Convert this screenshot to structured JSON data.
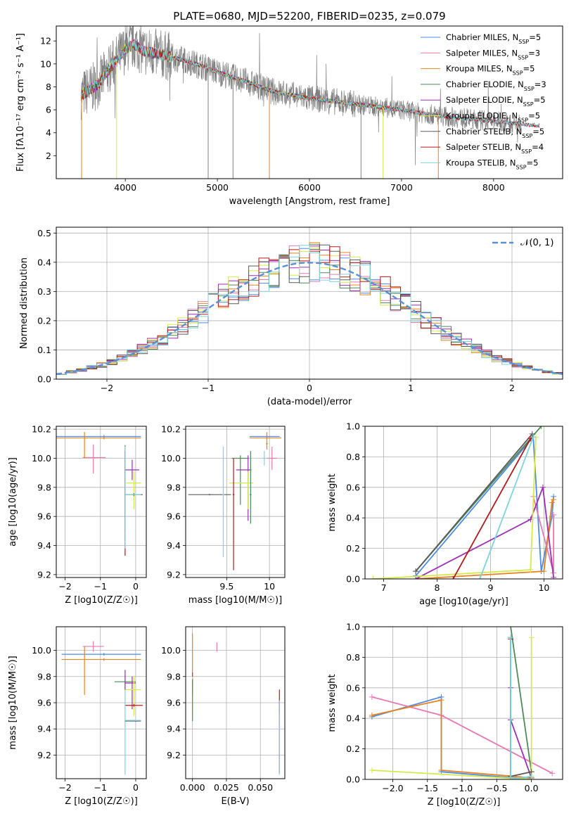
{
  "title": "PLATE=0680, MJD=52200, FIBERID=0235, z=0.079",
  "colors": {
    "chabrier_miles": "#4c8be6",
    "salpeter_miles": "#e67ab4",
    "kroupa_miles": "#e8821e",
    "chabrier_elodie": "#4f8a5a",
    "salpeter_elodie": "#9b2fb5",
    "kroupa_elodie": "#d4ea4a",
    "chabrier_stelib": "#5a5a5a",
    "salpeter_stelib": "#b01a1a",
    "kroupa_stelib": "#7ed4dc",
    "data": "#808080",
    "normal": "#5a8fd6"
  },
  "chart_data": [
    {
      "id": "spectrum",
      "type": "line",
      "xlabel": "wavelength [Angstrom, rest frame]",
      "ylabel": "Flux [fλ10⁻¹⁷ erg cm⁻² s⁻¹ A⁻¹]",
      "xlim": [
        3250,
        8750
      ],
      "ylim": [
        0,
        13.3
      ],
      "xticks": [
        4000,
        5000,
        6000,
        7000,
        8000
      ],
      "yticks": [
        2,
        4,
        6,
        8,
        10,
        12
      ],
      "legend": "upper-right",
      "legend_entries": [
        "Chabrier MILES, N_SSP=5",
        "Salpeter MILES, N_SSP=3",
        "Kroupa MILES, N_SSP=5",
        "Chabrier ELODIE, N_SSP=3",
        "Salpeter ELODIE, N_SSP=5",
        "Kroupa ELODIE, N_SSP=5",
        "Chabrier STELIB, N_SSP=5",
        "Salpeter STELIB, N_SSP=4",
        "Kroupa STELIB, N_SSP=5"
      ],
      "continuum": {
        "x": [
          3520,
          3700,
          3850,
          3900,
          4000,
          4100,
          4200,
          4400,
          4600,
          4800,
          5000,
          5300,
          5600,
          6000,
          6300,
          6600,
          7000,
          7300,
          7500,
          8000,
          8500
        ],
        "y": [
          7.3,
          8.2,
          9.8,
          10.3,
          11.3,
          11.7,
          11.1,
          10.8,
          10.4,
          9.9,
          9.3,
          8.5,
          7.6,
          7.0,
          6.7,
          6.4,
          6.0,
          5.6,
          5.4,
          5.0,
          4.6
        ]
      }
    },
    {
      "id": "residuals",
      "type": "step",
      "xlabel": "(data-model)/error",
      "ylabel": "Normed distribution",
      "xlim": [
        -2.5,
        2.5
      ],
      "ylim": [
        0,
        0.52
      ],
      "xticks": [
        -2,
        -1,
        0,
        1,
        2
      ],
      "yticks": [
        0.0,
        0.1,
        0.2,
        0.3,
        0.4,
        0.5
      ],
      "legend": "upper-right",
      "normal_label": "𝒩(0, 1)"
    },
    {
      "id": "age_vs_Z",
      "type": "errorbar",
      "xlabel": "Z [log10(Z/Z☉)]",
      "ylabel": "age  [log10(age/yr)]",
      "xlim": [
        -2.25,
        0.3
      ],
      "ylim": [
        9.18,
        10.22
      ],
      "xticks": [
        -2,
        -1,
        0
      ],
      "yticks": [
        9.2,
        9.4,
        9.6,
        9.8,
        10.0,
        10.2
      ],
      "points": [
        {
          "c": "chabrier_miles",
          "x": -0.9,
          "y": 10.15,
          "xlo": 2.15,
          "xhi": 1.05,
          "ylo": 0.01,
          "yhi": 0.01
        },
        {
          "c": "kroupa_miles",
          "x": -0.9,
          "y": 10.14,
          "xlo": 2.15,
          "xhi": 1.05,
          "ylo": 0.01,
          "yhi": 0.01
        },
        {
          "c": "salpeter_miles",
          "x": -1.2,
          "y": 10.005,
          "xlo": 0.3,
          "xhi": 0.35,
          "ylo": 0.11,
          "yhi": 0.09
        },
        {
          "c": "kroupa_miles",
          "x": -1.45,
          "y": 10.1,
          "xlo": 0.01,
          "xhi": 0.01,
          "ylo": 0.1,
          "yhi": 0.08
        },
        {
          "c": "chabrier_elodie",
          "x": -0.3,
          "y": 9.75,
          "xlo": 0.01,
          "xhi": 0.01,
          "ylo": 0.35,
          "yhi": 0.34
        },
        {
          "c": "salpeter_elodie",
          "x": -0.1,
          "y": 9.92,
          "xlo": 0.2,
          "xhi": 0.2,
          "ylo": 0.07,
          "yhi": 0.07
        },
        {
          "c": "salpeter_elodie",
          "x": -0.3,
          "y": 9.75,
          "xlo": 0.01,
          "xhi": 0.01,
          "ylo": 0.25,
          "yhi": 0.3
        },
        {
          "c": "kroupa_elodie",
          "x": -0.05,
          "y": 9.83,
          "xlo": 0.22,
          "xhi": 0.2,
          "ylo": 0.18,
          "yhi": 0.08
        },
        {
          "c": "chabrier_stelib",
          "x": -0.05,
          "y": 9.75,
          "xlo": 0.25,
          "xhi": 0.25,
          "ylo": 0.01,
          "yhi": 0.01
        },
        {
          "c": "salpeter_stelib",
          "x": -0.3,
          "y": 9.75,
          "xlo": 0.01,
          "xhi": 0.01,
          "ylo": 0.42,
          "yhi": 0.3
        },
        {
          "c": "kroupa_stelib",
          "x": -0.3,
          "y": 9.75,
          "xlo": 0.01,
          "xhi": 0.01,
          "ylo": 0.37,
          "yhi": 0.33
        },
        {
          "c": "kroupa_stelib",
          "x": 0.0,
          "y": 9.75,
          "xlo": 0.3,
          "xhi": 0.15,
          "ylo": 0.005,
          "yhi": 0.005
        }
      ]
    },
    {
      "id": "age_vs_mass",
      "type": "errorbar",
      "xlabel": "mass [log10(M/M☉)]",
      "ylabel": "",
      "xlim": [
        9.02,
        10.18
      ],
      "ylim": [
        9.18,
        10.22
      ],
      "xticks": [
        9.5,
        10.0
      ],
      "yticks": [
        9.2,
        9.4,
        9.6,
        9.8,
        10.0,
        10.2
      ],
      "points": [
        {
          "c": "chabrier_miles",
          "x": 9.97,
          "y": 10.15,
          "xlo": 0.2,
          "xhi": 0.15,
          "ylo": 0.01,
          "yhi": 0.01
        },
        {
          "c": "kroupa_miles",
          "x": 9.97,
          "y": 10.14,
          "xlo": 0.2,
          "xhi": 0.17,
          "ylo": 0.01,
          "yhi": 0.01
        },
        {
          "c": "kroupa_miles",
          "x": 9.97,
          "y": 10.1,
          "xlo": 0.01,
          "xhi": 0.01,
          "ylo": 0.04,
          "yhi": 0.08
        },
        {
          "c": "salpeter_miles",
          "x": 10.03,
          "y": 10.0,
          "xlo": 0.06,
          "xhi": 0.06,
          "ylo": 0.08,
          "yhi": 0.08
        },
        {
          "c": "chabrier_elodie",
          "x": 9.66,
          "y": 10.0,
          "xlo": 0.1,
          "xhi": 0.1,
          "ylo": 0.32,
          "yhi": 0.02
        },
        {
          "c": "salpeter_elodie",
          "x": 9.75,
          "y": 9.92,
          "xlo": 0.14,
          "xhi": 0.04,
          "ylo": 0.35,
          "yhi": 0.1
        },
        {
          "c": "kroupa_elodie",
          "x": 9.75,
          "y": 9.83,
          "xlo": 0.22,
          "xhi": 0.06,
          "ylo": 0.18,
          "yhi": 0.08
        },
        {
          "c": "chabrier_stelib",
          "x": 9.3,
          "y": 9.75,
          "xlo": 0.25,
          "xhi": 0.25,
          "ylo": 0.005,
          "yhi": 0.005
        },
        {
          "c": "salpeter_stelib",
          "x": 9.58,
          "y": 9.75,
          "xlo": 0.01,
          "xhi": 0.01,
          "ylo": 0.52,
          "yhi": 0.25
        },
        {
          "c": "kroupa_stelib",
          "x": 9.46,
          "y": 9.75,
          "xlo": 0.01,
          "xhi": 0.01,
          "ylo": 0.43,
          "yhi": 0.33
        },
        {
          "c": "chabrier_elodie",
          "x": 9.78,
          "y": 9.75,
          "xlo": 0.01,
          "xhi": 0.01,
          "ylo": 0.2,
          "yhi": 0.3
        },
        {
          "c": "kroupa_stelib",
          "x": 9.94,
          "y": 10.0,
          "xlo": 0.02,
          "xhi": 0.02,
          "ylo": 0.05,
          "yhi": 0.05
        }
      ]
    },
    {
      "id": "mass_weight_vs_age",
      "type": "line",
      "xlabel": "age  [log10(age/yr)]",
      "ylabel": "mass weight",
      "xlim": [
        6.65,
        10.35
      ],
      "ylim": [
        0,
        1
      ],
      "xticks": [
        7,
        8,
        9,
        10
      ],
      "yticks": [
        0.0,
        0.2,
        0.4,
        0.6,
        0.8,
        1.0
      ],
      "series": [
        {
          "c": "chabrier_miles",
          "x": [
            7.6,
            9.8,
            9.95,
            10.15,
            10.18
          ],
          "y": [
            0.02,
            0.93,
            0.05,
            0.41,
            0.54
          ]
        },
        {
          "c": "salpeter_miles",
          "x": [
            9.8,
            10.18,
            10.18
          ],
          "y": [
            0.54,
            0.04,
            0.42
          ]
        },
        {
          "c": "kroupa_miles",
          "x": [
            7.6,
            10.0,
            10.15,
            10.18
          ],
          "y": [
            0.0,
            0.05,
            0.5,
            0.52
          ]
        },
        {
          "c": "chabrier_elodie",
          "x": [
            7.6,
            9.95
          ],
          "y": [
            0.05,
            1.0
          ]
        },
        {
          "c": "salpeter_elodie",
          "x": [
            7.6,
            9.75,
            9.98,
            10.18
          ],
          "y": [
            0.0,
            0.39,
            0.6,
            0.01
          ]
        },
        {
          "c": "kroupa_elodie",
          "x": [
            6.8,
            9.75,
            9.85
          ],
          "y": [
            0.0,
            0.06,
            0.93
          ]
        },
        {
          "c": "chabrier_stelib",
          "x": [
            7.6,
            9.78
          ],
          "y": [
            0.05,
            0.95
          ]
        },
        {
          "c": "salpeter_stelib",
          "x": [
            8.3,
            9.75
          ],
          "y": [
            0.0,
            0.92
          ]
        },
        {
          "c": "kroupa_stelib",
          "x": [
            8.8,
            9.8
          ],
          "y": [
            0.0,
            0.93
          ]
        }
      ]
    },
    {
      "id": "mass_vs_Z",
      "type": "errorbar",
      "xlabel": "Z [log10(Z/Z☉)]",
      "ylabel": "mass [log10(M/M☉)]",
      "xlim": [
        -2.25,
        0.3
      ],
      "ylim": [
        9.02,
        10.18
      ],
      "xticks": [
        -2,
        -1,
        0
      ],
      "yticks": [
        9.2,
        9.4,
        9.6,
        9.8,
        10.0
      ],
      "points": [
        {
          "c": "chabrier_miles",
          "x": -0.9,
          "y": 9.97,
          "xlo": 1.2,
          "xhi": 1.05,
          "ylo": 0.01,
          "yhi": 0.01
        },
        {
          "c": "kroupa_miles",
          "x": -0.9,
          "y": 9.93,
          "xlo": 1.2,
          "xhi": 1.05,
          "ylo": 0.01,
          "yhi": 0.01
        },
        {
          "c": "kroupa_miles",
          "x": -1.45,
          "y": 9.93,
          "xlo": 0.01,
          "xhi": 0.01,
          "ylo": 0.27,
          "yhi": 0.1
        },
        {
          "c": "salpeter_miles",
          "x": -1.2,
          "y": 10.03,
          "xlo": 0.3,
          "xhi": 0.3,
          "ylo": 0.04,
          "yhi": 0.04
        },
        {
          "c": "chabrier_elodie",
          "x": -0.3,
          "y": 9.76,
          "xlo": 0.3,
          "xhi": 0.3,
          "ylo": 0.01,
          "yhi": 0.01
        },
        {
          "c": "salpeter_elodie",
          "x": -0.1,
          "y": 9.75,
          "xlo": 0.2,
          "xhi": 0.1,
          "ylo": 0.2,
          "yhi": 0.05
        },
        {
          "c": "kroupa_elodie",
          "x": -0.05,
          "y": 9.7,
          "xlo": 0.25,
          "xhi": 0.2,
          "ylo": 0.2,
          "yhi": 0.1
        },
        {
          "c": "salpeter_stelib",
          "x": -0.05,
          "y": 9.58,
          "xlo": 0.25,
          "xhi": 0.25,
          "ylo": 0.01,
          "yhi": 0.01
        },
        {
          "c": "kroupa_stelib",
          "x": -0.3,
          "y": 9.6,
          "xlo": 0.01,
          "xhi": 0.01,
          "ylo": 0.55,
          "yhi": 0.2
        },
        {
          "c": "chabrier_stelib",
          "x": 0.0,
          "y": 9.46,
          "xlo": 0.3,
          "xhi": 0.15,
          "ylo": 0.005,
          "yhi": 0.005
        },
        {
          "c": "kroupa_stelib",
          "x": 0.0,
          "y": 9.465,
          "xlo": 0.3,
          "xhi": 0.15,
          "ylo": 0.005,
          "yhi": 0.005
        },
        {
          "c": "salpeter_elodie",
          "x": -0.3,
          "y": 9.8,
          "xlo": 0.01,
          "xhi": 0.01,
          "ylo": 0.1,
          "yhi": 0.05
        }
      ]
    },
    {
      "id": "mass_vs_ebv",
      "type": "errorbar",
      "xlabel": "E(B-V)",
      "ylabel": "",
      "xlim": [
        -0.005,
        0.068
      ],
      "ylim": [
        9.02,
        10.18
      ],
      "xticks": [
        0.0,
        0.025,
        0.05
      ],
      "xticklabels": [
        "0.000",
        "0.025",
        "0.050"
      ],
      "yticks": [
        9.2,
        9.4,
        9.6,
        9.8,
        10.0
      ],
      "points": [
        {
          "c": "kroupa_miles",
          "x": 0.0,
          "y": 9.93,
          "xlo": 0.0003,
          "xhi": 0.0003,
          "ylo": 0.27,
          "yhi": 0.2
        },
        {
          "c": "salpeter_elodie",
          "x": 0.0,
          "y": 9.75,
          "xlo": 0.0003,
          "xhi": 0.0003,
          "ylo": 0.05,
          "yhi": 0.08
        },
        {
          "c": "kroupa_elodie",
          "x": 0.0,
          "y": 9.7,
          "xlo": 0.0003,
          "xhi": 0.0003,
          "ylo": 0.2,
          "yhi": 0.1
        },
        {
          "c": "chabrier_elodie",
          "x": 0.0,
          "y": 9.76,
          "xlo": 0.0003,
          "xhi": 0.0003,
          "ylo": 0.3,
          "yhi": 0.02
        },
        {
          "c": "salpeter_miles",
          "x": 0.018,
          "y": 10.03,
          "xlo": 0.0003,
          "xhi": 0.0003,
          "ylo": 0.04,
          "yhi": 0.03
        },
        {
          "c": "salpeter_stelib",
          "x": 0.064,
          "y": 9.62,
          "xlo": 0.0003,
          "xhi": 0.0003,
          "ylo": 0.1,
          "yhi": 0.08
        },
        {
          "c": "chabrier_stelib",
          "x": 0.064,
          "y": 9.46,
          "xlo": 0.0003,
          "xhi": 0.0003,
          "ylo": 0.4,
          "yhi": 0.15
        },
        {
          "c": "kroupa_stelib",
          "x": 0.064,
          "y": 9.4,
          "xlo": 0.0003,
          "xhi": 0.0003,
          "ylo": 0.35,
          "yhi": 0.22
        }
      ]
    },
    {
      "id": "mass_weight_vs_Z",
      "type": "line",
      "xlabel": "Z [log10(Z/Z☉)]",
      "ylabel": "mass weight",
      "xlim": [
        -2.4,
        0.45
      ],
      "ylim": [
        0,
        1
      ],
      "xticks": [
        -2.0,
        -1.5,
        -1.0,
        -0.5,
        0.0
      ],
      "xticklabels": [
        "−2.0",
        "−1.5",
        "−1.0",
        "−0.5",
        "0.0"
      ],
      "yticks": [
        0.0,
        0.2,
        0.4,
        0.6,
        0.8,
        1.0
      ],
      "series": [
        {
          "c": "chabrier_miles",
          "x": [
            -2.3,
            -1.3,
            -1.3,
            0.0,
            0.0
          ],
          "y": [
            0.41,
            0.54,
            0.05,
            0.0,
            0.05
          ]
        },
        {
          "c": "salpeter_miles",
          "x": [
            -2.3,
            -1.3,
            0.3
          ],
          "y": [
            0.54,
            0.42,
            0.04
          ]
        },
        {
          "c": "kroupa_miles",
          "x": [
            -2.3,
            -1.3,
            -1.3,
            0.0
          ],
          "y": [
            0.42,
            0.52,
            0.06,
            0.01
          ]
        },
        {
          "c": "chabrier_elodie",
          "x": [
            -0.3,
            0.0
          ],
          "y": [
            1.0,
            0.05
          ]
        },
        {
          "c": "salpeter_elodie",
          "x": [
            -0.3,
            -0.3,
            0.0
          ],
          "y": [
            0.6,
            0.39,
            0.01
          ]
        },
        {
          "c": "kroupa_elodie",
          "x": [
            -2.3,
            0.0,
            0.0
          ],
          "y": [
            0.06,
            0.0,
            0.93
          ]
        },
        {
          "c": "chabrier_stelib",
          "x": [
            -0.3,
            -0.3,
            0.0
          ],
          "y": [
            0.93,
            0.02,
            0.05
          ]
        },
        {
          "c": "salpeter_stelib",
          "x": [
            -0.3,
            -0.3
          ],
          "y": [
            0.92,
            0.0
          ]
        },
        {
          "c": "kroupa_stelib",
          "x": [
            -0.3,
            -0.3,
            0.0
          ],
          "y": [
            0.93,
            0.0,
            0.02
          ]
        }
      ]
    }
  ]
}
